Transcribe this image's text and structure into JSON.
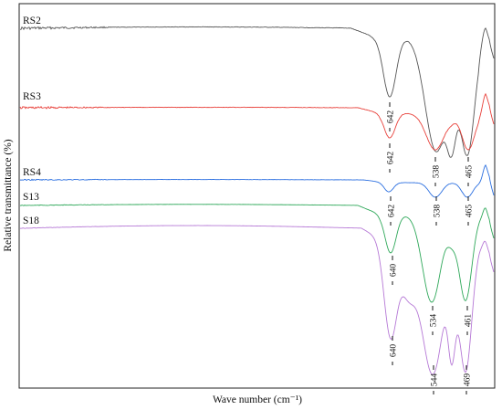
{
  "chart_data": {
    "type": "line",
    "xlabel": "Wave number (cm⁻¹)",
    "ylabel": "Relative transmittance (%)",
    "grid": false,
    "legend": "inline labels at left of each curve",
    "series": [
      {
        "name": "RS2",
        "color": "#555555",
        "peaks": [
          {
            "label": "642"
          }
        ]
      },
      {
        "name": "RS3",
        "color": "#e8403a",
        "peaks": [
          {
            "label": "642"
          },
          {
            "label": "538"
          },
          {
            "label": "465"
          }
        ]
      },
      {
        "name": "RS4",
        "color": "#2b6fe0",
        "peaks": [
          {
            "label": "642"
          },
          {
            "label": "538"
          },
          {
            "label": "465"
          }
        ]
      },
      {
        "name": "S13",
        "color": "#2fa85a",
        "peaks": [
          {
            "label": "640"
          },
          {
            "label": "534"
          },
          {
            "label": "461"
          }
        ]
      },
      {
        "name": "S18",
        "color": "#b679d6",
        "peaks": [
          {
            "label": "640"
          },
          {
            "label": "544"
          },
          {
            "label": "469"
          }
        ]
      }
    ]
  }
}
